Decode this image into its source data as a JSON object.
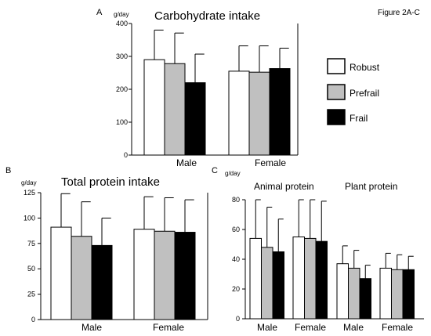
{
  "figure_label": "Figure 2A-C",
  "legend": [
    {
      "label": "Robust",
      "color": "#ffffff"
    },
    {
      "label": "Prefrail",
      "color": "#c0c0c0"
    },
    {
      "label": "Frail",
      "color": "#000000"
    }
  ],
  "chart_data": [
    {
      "panel": "A",
      "type": "bar",
      "title": "Carbohydrate intake",
      "ylabel": "g/day",
      "ylim": [
        0,
        400
      ],
      "yticks": [
        0,
        100,
        200,
        300,
        400
      ],
      "categories": [
        "Male",
        "Female"
      ],
      "series": [
        {
          "name": "Robust",
          "values": [
            290,
            255
          ],
          "errors": [
            90,
            77
          ]
        },
        {
          "name": "Prefrail",
          "values": [
            278,
            252
          ],
          "errors": [
            93,
            80
          ]
        },
        {
          "name": "Frail",
          "values": [
            220,
            263
          ],
          "errors": [
            87,
            62
          ]
        }
      ],
      "grid": false
    },
    {
      "panel": "B",
      "type": "bar",
      "title": "Total protein intake",
      "ylabel": "g/day",
      "ylim": [
        0,
        125
      ],
      "yticks": [
        0,
        25,
        50,
        75,
        100,
        125
      ],
      "categories": [
        "Male",
        "Female"
      ],
      "series": [
        {
          "name": "Robust",
          "values": [
            91,
            89
          ],
          "errors": [
            33,
            32
          ]
        },
        {
          "name": "Prefrail",
          "values": [
            82,
            87
          ],
          "errors": [
            34,
            33
          ]
        },
        {
          "name": "Frail",
          "values": [
            73,
            86
          ],
          "errors": [
            27,
            32
          ]
        }
      ],
      "grid": false
    },
    {
      "panel": "C",
      "type": "bar",
      "title": "",
      "group_labels": [
        "Animal protein",
        "Plant protein"
      ],
      "ylabel": "g/day",
      "ylim": [
        0,
        80
      ],
      "yticks": [
        0,
        20,
        40,
        60,
        80
      ],
      "categories": [
        "Male",
        "Female",
        "Male",
        "Female"
      ],
      "series": [
        {
          "name": "Robust",
          "values": [
            54,
            55,
            37,
            34
          ],
          "errors": [
            26,
            25,
            12,
            10
          ]
        },
        {
          "name": "Prefrail",
          "values": [
            48,
            54,
            34,
            33
          ],
          "errors": [
            27,
            26,
            12,
            10
          ]
        },
        {
          "name": "Frail",
          "values": [
            45,
            52,
            27,
            33
          ],
          "errors": [
            22,
            27,
            9,
            9
          ]
        }
      ],
      "grid": false
    }
  ]
}
